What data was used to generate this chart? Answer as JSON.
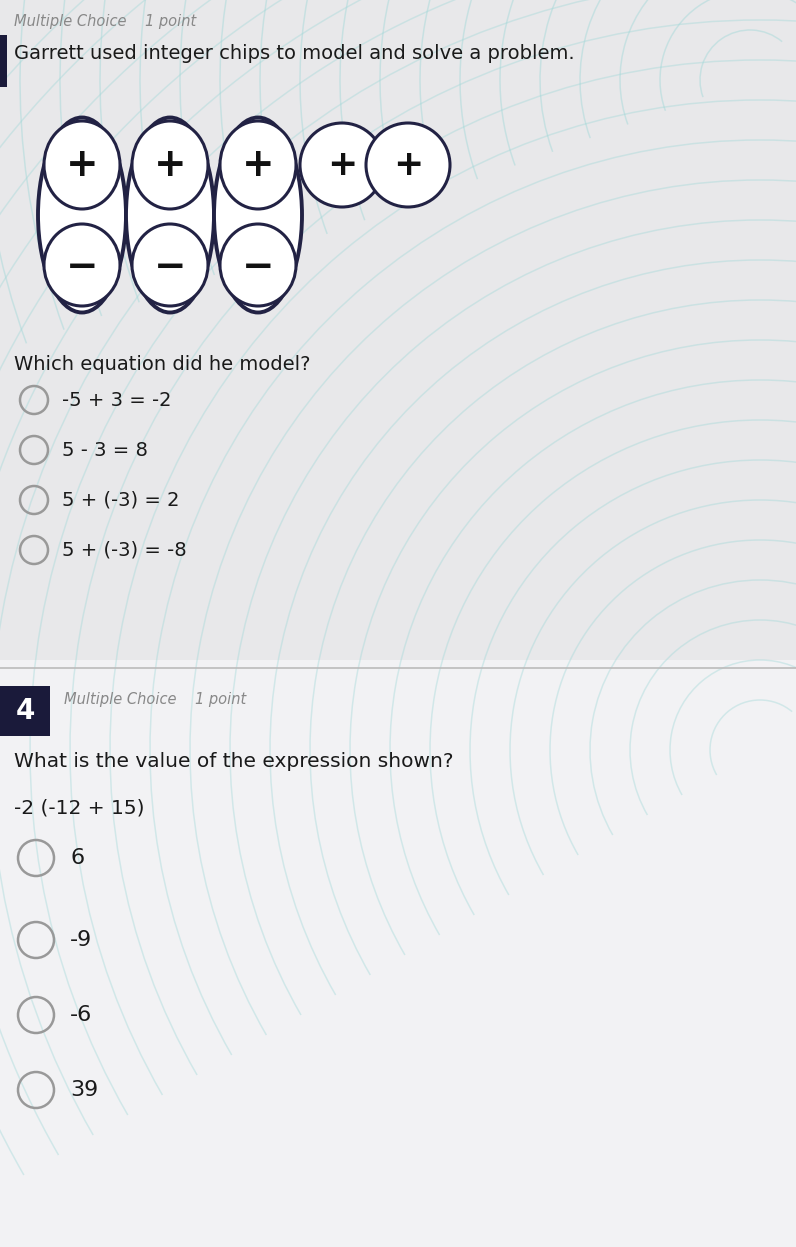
{
  "bg_color_q3": "#e8e8ea",
  "bg_color_q4": "#f2f2f4",
  "header1_text": "Multiple Choice    1 point",
  "header1_color": "#888888",
  "q3_text": "Garrett used integer chips to model and solve a problem.",
  "q3_options": [
    "-5 + 3 = -2",
    "5 - 3 = 8",
    "5 + (-3) = 2",
    "5 + (-3) = -8"
  ],
  "q3_question": "Which equation did he model?",
  "q4_number": "4",
  "q4_header": "Multiple Choice    1 point",
  "q4_question": "What is the value of the expression shown?",
  "q4_expression": "-2 (-12 + 15)",
  "q4_options": [
    "6",
    "-9",
    "-6",
    "39"
  ],
  "wave_color": "#a0d8d8",
  "chip_outline_color": "#222244",
  "chip_fill_color": "#ffffff",
  "chip_symbol_color": "#111111",
  "text_color": "#1a1a1a",
  "circle_color": "#999999",
  "number_box_color": "#1a1a3a",
  "number_text_color": "#ffffff",
  "divider_color": "#bbbbbb",
  "left_bar_color": "#1a1a3a"
}
